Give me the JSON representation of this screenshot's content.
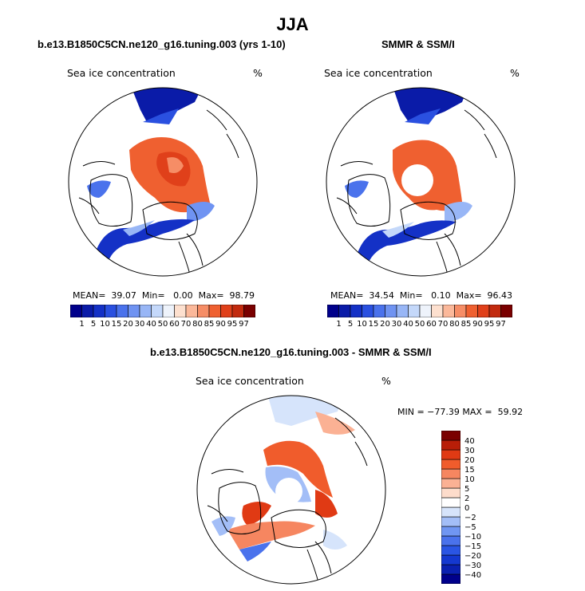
{
  "figure": {
    "title": "JJA",
    "colors": {
      "land_outline": "#000000",
      "background": "#ffffff"
    }
  },
  "panels": [
    {
      "title": "b.e13.B1850C5CN.ne120_g16.tuning.003 (yrs 1-10)",
      "variable_label": "Sea ice concentration",
      "units_label": "%",
      "stats_text": "MEAN=  39.07  Min=   0.00  Max=  98.79",
      "stats": {
        "mean": 39.07,
        "min": 0.0,
        "max": 98.79
      }
    },
    {
      "title": "SMMR & SSM/I",
      "variable_label": "Sea ice concentration",
      "units_label": "%",
      "stats_text": "MEAN=  34.54  Min=   0.10  Max=  96.43",
      "stats": {
        "mean": 34.54,
        "min": 0.1,
        "max": 96.43
      }
    },
    {
      "title": "b.e13.B1850C5CN.ne120_g16.tuning.003 - SMMR & SSM/I",
      "variable_label": "Sea ice concentration",
      "units_label": "%",
      "stats_text": "MIN = −77.39 MAX =  59.92",
      "stats": {
        "min": -77.39,
        "max": 59.92
      }
    }
  ],
  "chart_data": [
    {
      "type": "heatmap",
      "projection": "north-polar-stereographic",
      "title": "b.e13.B1850C5CN.ne120_g16.tuning.003 (yrs 1-10)",
      "variable": "Sea ice concentration",
      "units": "%",
      "stats": {
        "mean": 39.07,
        "min": 0.0,
        "max": 98.79
      },
      "colorbar": {
        "orientation": "horizontal",
        "levels": [
          1,
          5,
          10,
          15,
          20,
          30,
          40,
          50,
          60,
          70,
          80,
          85,
          90,
          95,
          97
        ],
        "tick_labels": [
          "1",
          "5",
          "10",
          "15",
          "20",
          "30",
          "40",
          "50",
          "60",
          "70",
          "80",
          "85",
          "90",
          "95",
          "97"
        ],
        "colors": [
          "#00008b",
          "#0a1ba8",
          "#1431c6",
          "#2a50e0",
          "#4a72ec",
          "#6f93f2",
          "#98b6f6",
          "#c4d8fa",
          "#eef3fb",
          "#fde0cf",
          "#fbb89a",
          "#f68d66",
          "#ef6030",
          "#e0401a",
          "#c22a0e",
          "#7a0000"
        ]
      }
    },
    {
      "type": "heatmap",
      "projection": "north-polar-stereographic",
      "title": "SMMR & SSM/I",
      "variable": "Sea ice concentration",
      "units": "%",
      "stats": {
        "mean": 34.54,
        "min": 0.1,
        "max": 96.43
      },
      "colorbar": {
        "orientation": "horizontal",
        "levels": [
          1,
          5,
          10,
          15,
          20,
          30,
          40,
          50,
          60,
          70,
          80,
          85,
          90,
          95,
          97
        ],
        "tick_labels": [
          "1",
          "5",
          "10",
          "15",
          "20",
          "30",
          "40",
          "50",
          "60",
          "70",
          "80",
          "85",
          "90",
          "95",
          "97"
        ],
        "colors": [
          "#00008b",
          "#0a1ba8",
          "#1431c6",
          "#2a50e0",
          "#4a72ec",
          "#6f93f2",
          "#98b6f6",
          "#c4d8fa",
          "#eef3fb",
          "#fde0cf",
          "#fbb89a",
          "#f68d66",
          "#ef6030",
          "#e0401a",
          "#c22a0e",
          "#7a0000"
        ]
      }
    },
    {
      "type": "heatmap",
      "projection": "north-polar-stereographic",
      "title": "b.e13.B1850C5CN.ne120_g16.tuning.003 - SMMR & SSM/I",
      "variable": "Sea ice concentration",
      "units": "%",
      "stats": {
        "min": -77.39,
        "max": 59.92
      },
      "colorbar": {
        "orientation": "vertical",
        "levels": [
          -40,
          -30,
          -20,
          -15,
          -10,
          -5,
          -2,
          0,
          2,
          5,
          10,
          15,
          20,
          30,
          40
        ],
        "tick_labels": [
          "40",
          "30",
          "20",
          "15",
          "10",
          "5",
          "2",
          "0",
          "−2",
          "−5",
          "−10",
          "−15",
          "−20",
          "−30",
          "−40"
        ],
        "colors": [
          "#00008b",
          "#0a20b0",
          "#1438d0",
          "#2a55e4",
          "#4a72ec",
          "#7096f2",
          "#a3bef7",
          "#d6e4fb",
          "#ffffff",
          "#fddccb",
          "#fbb194",
          "#f68660",
          "#f05c2c",
          "#e03a14",
          "#b81e08",
          "#7a0000"
        ]
      }
    }
  ]
}
